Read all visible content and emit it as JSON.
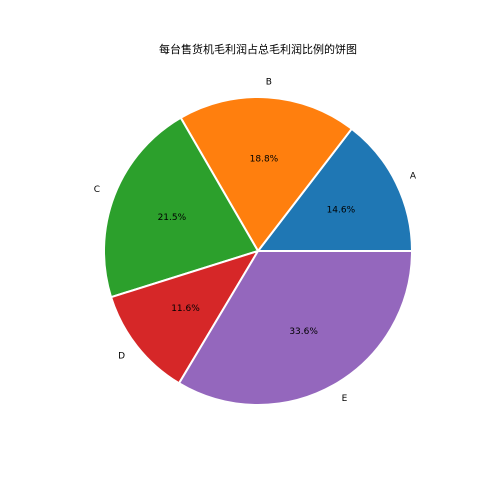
{
  "chart_data": {
    "type": "pie",
    "title": "每台售货机毛利润占总毛利润比例的饼图",
    "categories": [
      "A",
      "B",
      "C",
      "D",
      "E"
    ],
    "values": [
      14.6,
      18.8,
      21.5,
      11.6,
      33.6
    ],
    "value_labels": [
      "14.6%",
      "18.8%",
      "21.5%",
      "11.6%",
      "33.6%"
    ],
    "colors": [
      "#1f77b4",
      "#ff7f0e",
      "#2ca02c",
      "#d62728",
      "#9467bd"
    ],
    "start_angle": 0,
    "direction": "counterclockwise",
    "legend": "none"
  }
}
